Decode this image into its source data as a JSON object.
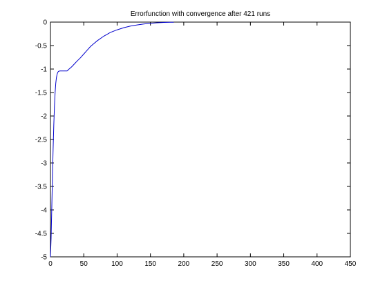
{
  "chart_data": {
    "type": "line",
    "title": "Errorfunction with convergence after 421 runs",
    "xlabel": "",
    "ylabel": "",
    "xlim": [
      0,
      450
    ],
    "ylim": [
      -5,
      0
    ],
    "xticks": [
      0,
      50,
      100,
      150,
      200,
      250,
      300,
      350,
      400,
      450
    ],
    "yticks": [
      0,
      -0.5,
      -1,
      -1.5,
      -2,
      -2.5,
      -3,
      -3.5,
      -4,
      -4.5,
      -5
    ],
    "grid": false,
    "series": [
      {
        "color": "#0000cc",
        "x": [
          0,
          1,
          2,
          3,
          4,
          5,
          6,
          7,
          8,
          9,
          10,
          11,
          12,
          13,
          14,
          15,
          16,
          18,
          20,
          22,
          25,
          28,
          32,
          36,
          40,
          45,
          50,
          55,
          60,
          65,
          70,
          80,
          90,
          100,
          110,
          120,
          130,
          140,
          150,
          160,
          170,
          180,
          185
        ],
        "y": [
          -5,
          -4.6,
          -3.95,
          -3.3,
          -2.7,
          -2.2,
          -1.8,
          -1.5,
          -1.3,
          -1.18,
          -1.11,
          -1.07,
          -1.05,
          -1.045,
          -1.04,
          -1.04,
          -1.04,
          -1.04,
          -1.04,
          -1.04,
          -1.04,
          -1.0,
          -0.95,
          -0.89,
          -0.83,
          -0.76,
          -0.68,
          -0.6,
          -0.52,
          -0.46,
          -0.4,
          -0.3,
          -0.22,
          -0.165,
          -0.12,
          -0.085,
          -0.06,
          -0.04,
          -0.025,
          -0.015,
          -0.008,
          -0.004,
          -0.003
        ]
      }
    ]
  }
}
